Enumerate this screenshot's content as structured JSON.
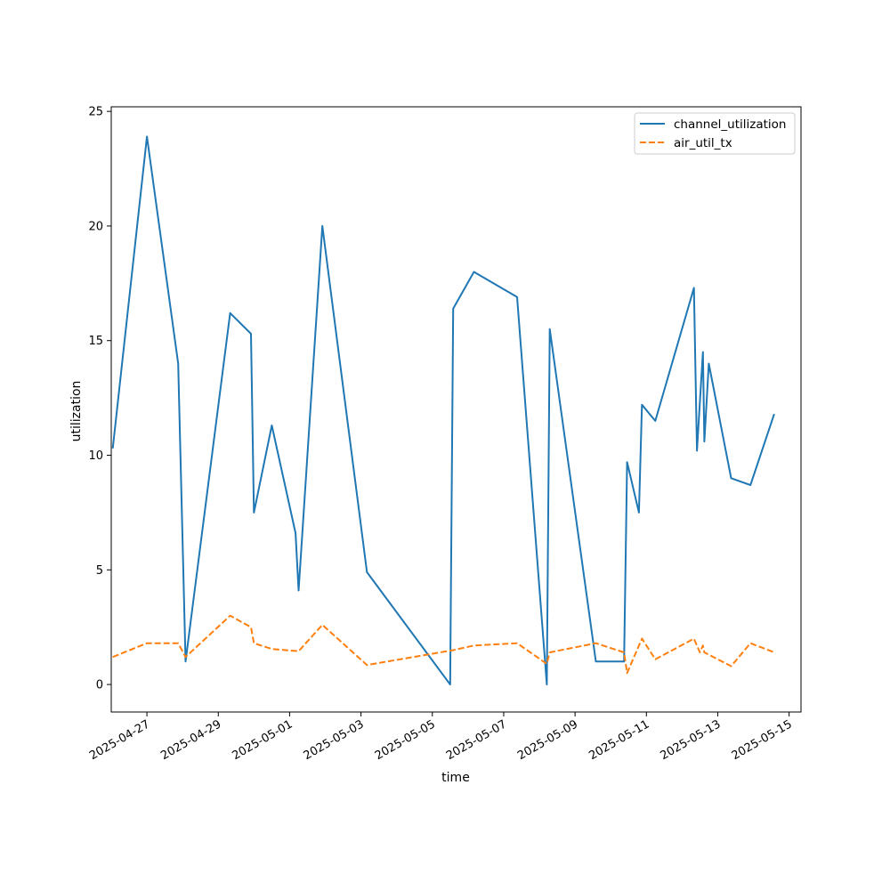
{
  "chart_data": {
    "type": "line",
    "xlabel": "time",
    "ylabel": "utilization",
    "xlim": [
      "2025-04-26T00:00",
      "2025-05-15T08:00"
    ],
    "ylim": [
      -1.2,
      25.2
    ],
    "x_ticks": [
      "2025-04-27",
      "2025-04-29",
      "2025-05-01",
      "2025-05-03",
      "2025-05-05",
      "2025-05-07",
      "2025-05-09",
      "2025-05-11",
      "2025-05-13",
      "2025-05-15"
    ],
    "y_ticks": [
      0,
      5,
      10,
      15,
      20,
      25
    ],
    "legend_position": "top-right",
    "grid": false,
    "series": [
      {
        "name": "channel_utilization",
        "color": "#1f77b4",
        "dash": "solid",
        "points": [
          {
            "x": "2025-04-26T01:00",
            "y": 10.3
          },
          {
            "x": "2025-04-27T00:00",
            "y": 23.9
          },
          {
            "x": "2025-04-27T21:00",
            "y": 14.0
          },
          {
            "x": "2025-04-28T02:00",
            "y": 1.0
          },
          {
            "x": "2025-04-29T08:00",
            "y": 16.2
          },
          {
            "x": "2025-04-29T22:00",
            "y": 15.3
          },
          {
            "x": "2025-04-30T00:00",
            "y": 7.5
          },
          {
            "x": "2025-04-30T12:00",
            "y": 11.3
          },
          {
            "x": "2025-05-01T04:00",
            "y": 6.6
          },
          {
            "x": "2025-05-01T06:00",
            "y": 4.1
          },
          {
            "x": "2025-05-01T22:00",
            "y": 20.0
          },
          {
            "x": "2025-05-03T04:00",
            "y": 4.9
          },
          {
            "x": "2025-05-05T12:00",
            "y": 0.0
          },
          {
            "x": "2025-05-05T14:00",
            "y": 16.4
          },
          {
            "x": "2025-05-06T04:00",
            "y": 18.0
          },
          {
            "x": "2025-05-07T09:00",
            "y": 16.9
          },
          {
            "x": "2025-05-08T05:00",
            "y": 0.0
          },
          {
            "x": "2025-05-08T07:00",
            "y": 15.5
          },
          {
            "x": "2025-05-09T14:00",
            "y": 1.0
          },
          {
            "x": "2025-05-10T09:00",
            "y": 1.0
          },
          {
            "x": "2025-05-10T11:00",
            "y": 9.7
          },
          {
            "x": "2025-05-10T19:00",
            "y": 7.5
          },
          {
            "x": "2025-05-10T21:00",
            "y": 12.2
          },
          {
            "x": "2025-05-11T06:00",
            "y": 11.5
          },
          {
            "x": "2025-05-12T08:00",
            "y": 17.3
          },
          {
            "x": "2025-05-12T10:00",
            "y": 10.2
          },
          {
            "x": "2025-05-12T14:00",
            "y": 14.5
          },
          {
            "x": "2025-05-12T15:00",
            "y": 10.6
          },
          {
            "x": "2025-05-12T18:00",
            "y": 14.0
          },
          {
            "x": "2025-05-13T09:00",
            "y": 9.0
          },
          {
            "x": "2025-05-13T22:00",
            "y": 8.7
          },
          {
            "x": "2025-05-14T14:00",
            "y": 11.8
          }
        ]
      },
      {
        "name": "air_util_tx",
        "color": "#ff7f0e",
        "dash": "dashed",
        "points": [
          {
            "x": "2025-04-26T01:00",
            "y": 1.2
          },
          {
            "x": "2025-04-27T00:00",
            "y": 1.8
          },
          {
            "x": "2025-04-27T21:00",
            "y": 1.8
          },
          {
            "x": "2025-04-28T02:00",
            "y": 1.2
          },
          {
            "x": "2025-04-29T08:00",
            "y": 3.0
          },
          {
            "x": "2025-04-29T22:00",
            "y": 2.5
          },
          {
            "x": "2025-04-30T00:00",
            "y": 1.8
          },
          {
            "x": "2025-04-30T12:00",
            "y": 1.55
          },
          {
            "x": "2025-05-01T06:00",
            "y": 1.45
          },
          {
            "x": "2025-05-01T22:00",
            "y": 2.6
          },
          {
            "x": "2025-05-03T04:00",
            "y": 0.85
          },
          {
            "x": "2025-05-05T14:00",
            "y": 1.5
          },
          {
            "x": "2025-05-06T04:00",
            "y": 1.7
          },
          {
            "x": "2025-05-07T09:00",
            "y": 1.8
          },
          {
            "x": "2025-05-08T05:00",
            "y": 0.9
          },
          {
            "x": "2025-05-08T07:00",
            "y": 1.4
          },
          {
            "x": "2025-05-09T14:00",
            "y": 1.8
          },
          {
            "x": "2025-05-10T09:00",
            "y": 1.4
          },
          {
            "x": "2025-05-10T11:00",
            "y": 0.5
          },
          {
            "x": "2025-05-10T21:00",
            "y": 2.0
          },
          {
            "x": "2025-05-11T06:00",
            "y": 1.1
          },
          {
            "x": "2025-05-12T08:00",
            "y": 2.0
          },
          {
            "x": "2025-05-12T12:00",
            "y": 1.4
          },
          {
            "x": "2025-05-12T14:00",
            "y": 1.7
          },
          {
            "x": "2025-05-12T15:00",
            "y": 1.4
          },
          {
            "x": "2025-05-13T09:00",
            "y": 0.8
          },
          {
            "x": "2025-05-13T22:00",
            "y": 1.8
          },
          {
            "x": "2025-05-14T14:00",
            "y": 1.4
          }
        ]
      }
    ]
  }
}
